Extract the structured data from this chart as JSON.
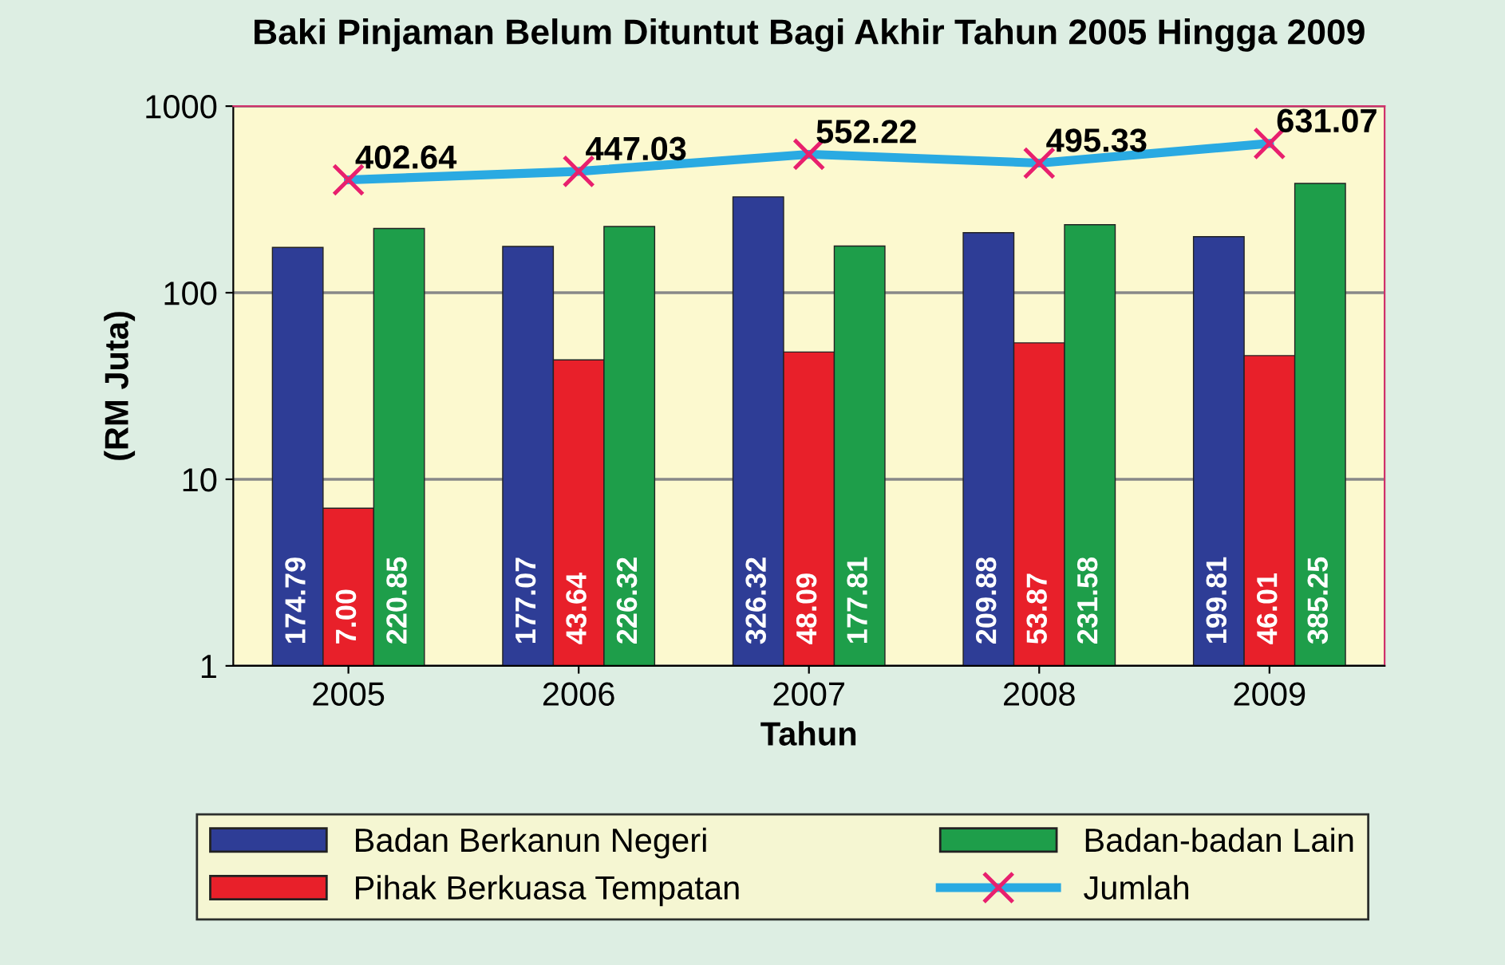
{
  "chart_data": {
    "type": "bar",
    "title": "Baki Pinjaman Belum Dituntut Bagi Akhir Tahun 2005 Hingga 2009",
    "xlabel": "Tahun",
    "ylabel": "(RM Juta)",
    "categories": [
      "2005",
      "2006",
      "2007",
      "2008",
      "2009"
    ],
    "series": [
      {
        "name": "Badan Berkanun Negeri",
        "color": "#2e3d96",
        "values": [
          174.79,
          177.07,
          326.32,
          209.88,
          199.81
        ],
        "value_labels": [
          "174.79",
          "177.07",
          "326.32",
          "209.88",
          "199.81"
        ]
      },
      {
        "name": "Pihak Berkuasa Tempatan",
        "color": "#e8202a",
        "values": [
          7.0,
          43.64,
          48.09,
          53.87,
          46.01
        ],
        "value_labels": [
          "7.00",
          "43.64",
          "48.09",
          "53.87",
          "46.01"
        ]
      },
      {
        "name": "Badan-badan Lain",
        "color": "#1e9e4a",
        "values": [
          220.85,
          226.32,
          177.81,
          231.58,
          385.25
        ],
        "value_labels": [
          "220.85",
          "226.32",
          "177.81",
          "231.58",
          "385.25"
        ]
      },
      {
        "name": "Jumlah",
        "type": "line",
        "color": "#2aaae2",
        "marker": "cross",
        "values": [
          402.64,
          447.03,
          552.22,
          495.33,
          631.07
        ],
        "value_labels": [
          "402.64",
          "447.03",
          "552.22",
          "495.33",
          "631.07"
        ]
      }
    ],
    "log": "y",
    "ylim": [
      1,
      1000
    ],
    "yticks": [
      1,
      10,
      100,
      1000
    ],
    "grid": "y",
    "legend": "bottom"
  }
}
